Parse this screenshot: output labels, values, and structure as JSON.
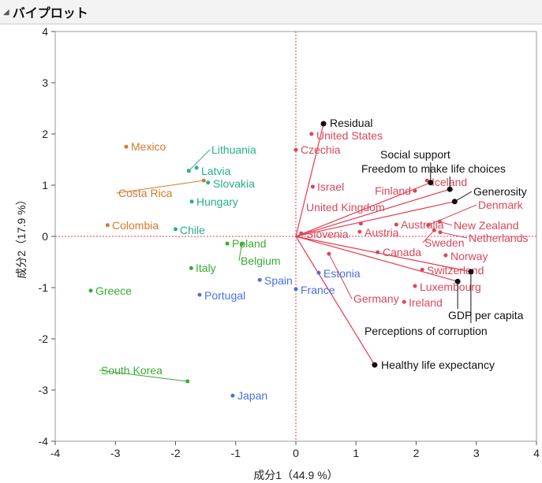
{
  "header": {
    "title": "バイプロット",
    "collapse_icon": "disclosure-triangle-icon"
  },
  "chart_data": {
    "type": "scatter",
    "title": "",
    "xlabel": "成分1（44.9 %）",
    "ylabel": "成分2（17.9 %）",
    "xlim": [
      -4,
      4
    ],
    "ylim": [
      -4,
      4
    ],
    "xticks": [
      -4,
      -3,
      -2,
      -1,
      0,
      1,
      2,
      3,
      4
    ],
    "yticks": [
      -4,
      -3,
      -2,
      -1,
      0,
      1,
      2,
      3,
      4
    ],
    "reference_lines": {
      "x": 0,
      "y": 0,
      "style": "dotted",
      "color": "#e8394d"
    },
    "colors": {
      "red": "#d9475a",
      "green": "#3aaa35",
      "teal": "#26b08a",
      "orange": "#d6782a",
      "blue": "#4a6fe0",
      "arrow": "#e8394d"
    },
    "points": [
      {
        "label": "United States",
        "x": 0.26,
        "y": 2.0,
        "group": "red"
      },
      {
        "label": "Czechia",
        "x": 0.0,
        "y": 1.69,
        "group": "red"
      },
      {
        "label": "Israel",
        "x": 0.28,
        "y": 0.97,
        "group": "red"
      },
      {
        "label": "Iceland",
        "x": 2.18,
        "y": 1.09,
        "group": "red"
      },
      {
        "label": "Finland",
        "x": 1.98,
        "y": 0.89,
        "group": "red"
      },
      {
        "label": "United Kingdom",
        "x": 1.08,
        "y": 0.25,
        "group": "red"
      },
      {
        "label": "Slovenia",
        "x": 0.09,
        "y": 0.06,
        "group": "red"
      },
      {
        "label": "Austria",
        "x": 1.06,
        "y": 0.09,
        "group": "red"
      },
      {
        "label": "Australia",
        "x": 1.67,
        "y": 0.23,
        "group": "red"
      },
      {
        "label": "New Zealand",
        "x": 2.39,
        "y": 0.29,
        "group": "red"
      },
      {
        "label": "Denmark",
        "x": 2.2,
        "y": 0.22,
        "group": "red"
      },
      {
        "label": "Sweden",
        "x": 2.3,
        "y": 0.12,
        "group": "red"
      },
      {
        "label": "Netherlands",
        "x": 2.4,
        "y": 0.08,
        "group": "red"
      },
      {
        "label": "Canada",
        "x": 1.36,
        "y": -0.31,
        "group": "red"
      },
      {
        "label": "Norway",
        "x": 2.49,
        "y": -0.37,
        "group": "red"
      },
      {
        "label": "Switzerland",
        "x": 2.1,
        "y": -0.65,
        "group": "red"
      },
      {
        "label": "Luxembourg",
        "x": 1.98,
        "y": -0.97,
        "group": "red"
      },
      {
        "label": "Ireland",
        "x": 1.8,
        "y": -1.28,
        "group": "red"
      },
      {
        "label": "Germany",
        "x": 0.55,
        "y": -0.34,
        "group": "red"
      },
      {
        "label": "Greece",
        "x": -3.41,
        "y": -1.06,
        "group": "green"
      },
      {
        "label": "Italy",
        "x": -1.74,
        "y": -0.62,
        "group": "green"
      },
      {
        "label": "Poland",
        "x": -1.14,
        "y": -0.14,
        "group": "green"
      },
      {
        "label": "Belgium",
        "x": -0.9,
        "y": -0.15,
        "group": "green"
      },
      {
        "label": "South Korea",
        "x": -1.8,
        "y": -2.83,
        "group": "green"
      },
      {
        "label": "Hungary",
        "x": -1.73,
        "y": 0.68,
        "group": "teal"
      },
      {
        "label": "Lithuania",
        "x": -1.78,
        "y": 1.28,
        "group": "teal"
      },
      {
        "label": "Latvia",
        "x": -1.65,
        "y": 1.34,
        "group": "teal"
      },
      {
        "label": "Slovakia",
        "x": -1.46,
        "y": 1.05,
        "group": "teal"
      },
      {
        "label": "Chile",
        "x": -2.0,
        "y": 0.14,
        "group": "teal"
      },
      {
        "label": "Mexico",
        "x": -2.82,
        "y": 1.75,
        "group": "orange"
      },
      {
        "label": "Costa Rica",
        "x": -1.53,
        "y": 1.09,
        "group": "orange"
      },
      {
        "label": "Colombia",
        "x": -3.13,
        "y": 0.22,
        "group": "orange"
      },
      {
        "label": "Spain",
        "x": -0.6,
        "y": -0.85,
        "group": "blue"
      },
      {
        "label": "Portugal",
        "x": -1.6,
        "y": -1.14,
        "group": "blue"
      },
      {
        "label": "France",
        "x": 0.0,
        "y": -1.03,
        "group": "blue"
      },
      {
        "label": "Estonia",
        "x": 0.38,
        "y": -0.71,
        "group": "blue"
      },
      {
        "label": "Japan",
        "x": -1.05,
        "y": -3.11,
        "group": "blue"
      }
    ],
    "loadings": [
      {
        "label": "Residual",
        "x": 0.46,
        "y": 2.2
      },
      {
        "label": "Social support",
        "x": 2.24,
        "y": 1.05
      },
      {
        "label": "Freedom to make life choices",
        "x": 2.56,
        "y": 0.92
      },
      {
        "label": "Generosity",
        "x": 2.64,
        "y": 0.68
      },
      {
        "label": "GDP per capita",
        "x": 2.69,
        "y": -0.88
      },
      {
        "label": "Perceptions of corruption",
        "x": 2.91,
        "y": -0.69
      },
      {
        "label": "Healthy life expectancy",
        "x": 1.31,
        "y": -2.51
      }
    ]
  }
}
